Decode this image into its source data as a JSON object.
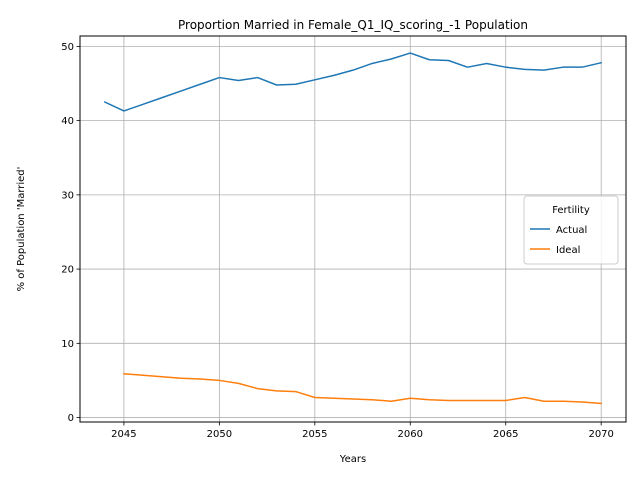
{
  "chart_data": {
    "type": "line",
    "title": "Proportion Married in Female_Q1_IQ_scoring_-1 Population",
    "xlabel": "Years",
    "ylabel": "% of Population 'Married'",
    "xlim": [
      2042.7,
      2071.3
    ],
    "ylim": [
      -0.6,
      51.4
    ],
    "xticks": [
      2045,
      2050,
      2055,
      2060,
      2065,
      2070
    ],
    "yticks": [
      0,
      10,
      20,
      30,
      40,
      50
    ],
    "grid": true,
    "legend": {
      "title": "Fertility",
      "placement": "center-right"
    },
    "series": [
      {
        "name": "Actual",
        "color": "#1f77b4",
        "x": [
          2044,
          2045,
          2046,
          2047,
          2048,
          2049,
          2050,
          2051,
          2052,
          2053,
          2054,
          2055,
          2056,
          2057,
          2058,
          2059,
          2060,
          2061,
          2062,
          2063,
          2064,
          2065,
          2066,
          2067,
          2068,
          2069,
          2070
        ],
        "y": [
          42.5,
          41.3,
          42.2,
          43.1,
          44.0,
          44.9,
          45.8,
          45.4,
          45.8,
          44.8,
          44.9,
          45.5,
          46.1,
          46.8,
          47.7,
          48.3,
          49.1,
          48.2,
          48.1,
          47.2,
          47.7,
          47.2,
          46.9,
          46.8,
          47.2,
          47.2,
          47.8
        ]
      },
      {
        "name": "Ideal",
        "color": "#ff7f0e",
        "x": [
          2045,
          2046,
          2047,
          2048,
          2049,
          2050,
          2051,
          2052,
          2053,
          2054,
          2055,
          2056,
          2057,
          2058,
          2059,
          2060,
          2061,
          2062,
          2063,
          2064,
          2065,
          2066,
          2067,
          2068,
          2069,
          2070
        ],
        "y": [
          5.9,
          5.7,
          5.5,
          5.3,
          5.2,
          5.0,
          4.6,
          3.9,
          3.6,
          3.5,
          2.7,
          2.6,
          2.5,
          2.4,
          2.2,
          2.6,
          2.4,
          2.3,
          2.3,
          2.3,
          2.3,
          2.7,
          2.2,
          2.2,
          2.1,
          1.9
        ]
      }
    ]
  }
}
